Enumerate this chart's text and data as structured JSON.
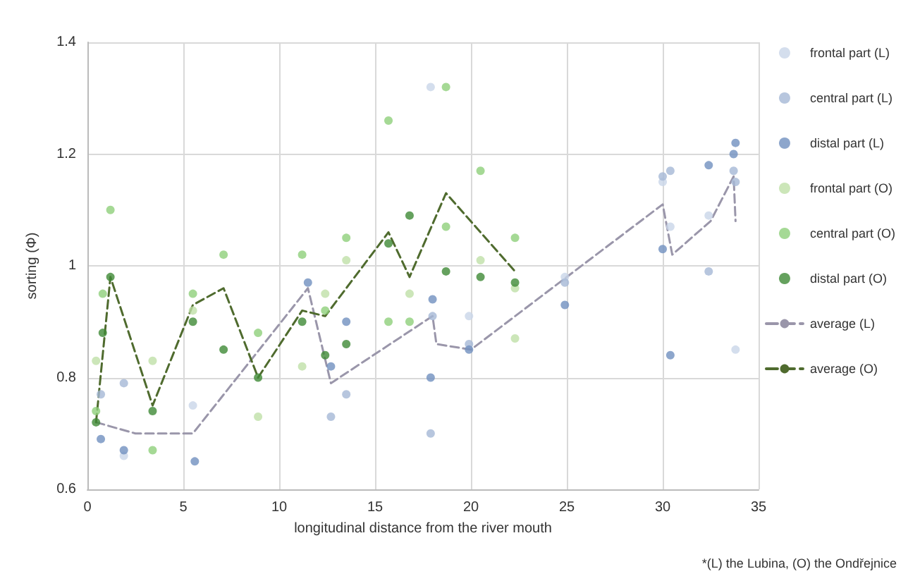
{
  "chart_data": {
    "type": "scatter",
    "xlabel": "longitudinal distance from the river mouth",
    "ylabel": "sorting (Φ)",
    "xlim": [
      0,
      35
    ],
    "xticks": [
      0,
      5,
      10,
      15,
      20,
      25,
      30,
      35
    ],
    "ylim": [
      0.6,
      1.4
    ],
    "yticks": [
      0.6,
      0.8,
      1,
      1.2,
      1.4
    ],
    "grid": true,
    "legend": "right",
    "marker": "circle",
    "annotations": [
      "*(L) the Lubina, (O) the Ondřejnice"
    ],
    "series": [
      {
        "name": "frontal part (L)",
        "color": "#c9d6e8",
        "x": [
          1.9,
          5.5,
          17.9,
          19.9,
          24.9,
          30.0,
          30.4,
          32.4,
          33.8
        ],
        "values": [
          0.66,
          0.75,
          1.32,
          0.91,
          0.98,
          1.15,
          1.07,
          1.09,
          0.85
        ]
      },
      {
        "name": "central part (L)",
        "color": "#a5b8d6",
        "x": [
          0.7,
          1.9,
          12.7,
          13.5,
          17.9,
          18.0,
          19.9,
          24.9,
          30.0,
          30.4,
          32.4,
          33.7,
          33.8
        ],
        "values": [
          0.77,
          0.79,
          0.73,
          0.77,
          0.7,
          0.91,
          0.86,
          0.97,
          1.16,
          1.17,
          0.99,
          1.17,
          1.15
        ]
      },
      {
        "name": "distal part (L)",
        "color": "#7090bf",
        "x": [
          0.7,
          1.9,
          5.6,
          11.5,
          12.7,
          13.5,
          17.9,
          18.0,
          19.9,
          24.9,
          30.0,
          30.4,
          32.4,
          33.7,
          33.8
        ],
        "values": [
          0.69,
          0.67,
          0.65,
          0.97,
          0.82,
          0.9,
          0.8,
          0.94,
          0.85,
          0.93,
          1.03,
          0.84,
          1.18,
          1.2,
          1.22
        ]
      },
      {
        "name": "frontal part (O)",
        "color": "#bfe0a8",
        "x": [
          0.45,
          3.4,
          5.5,
          8.9,
          11.2,
          12.4,
          13.5,
          16.8,
          20.5,
          22.3,
          22.3
        ],
        "values": [
          0.83,
          0.83,
          0.92,
          0.73,
          0.82,
          0.95,
          1.01,
          0.95,
          1.01,
          0.87,
          0.96
        ]
      },
      {
        "name": "central part (O)",
        "color": "#8ecf7a",
        "x": [
          0.45,
          0.8,
          1.2,
          3.4,
          5.5,
          7.1,
          8.9,
          11.2,
          12.4,
          13.5,
          15.7,
          15.7,
          16.8,
          18.7,
          18.7,
          20.5,
          22.3
        ],
        "values": [
          0.74,
          0.95,
          1.1,
          0.67,
          0.95,
          1.02,
          0.88,
          1.02,
          0.92,
          1.05,
          0.9,
          1.26,
          0.9,
          1.07,
          1.32,
          1.17,
          1.05
        ]
      },
      {
        "name": "distal part (O)",
        "color": "#3f8a36",
        "x": [
          0.45,
          0.8,
          1.2,
          3.4,
          5.5,
          7.1,
          8.9,
          11.2,
          12.4,
          13.5,
          15.7,
          16.8,
          18.7,
          20.5,
          22.3
        ],
        "values": [
          0.72,
          0.88,
          0.98,
          0.74,
          0.9,
          0.85,
          0.8,
          0.9,
          0.84,
          0.86,
          1.04,
          1.09,
          0.99,
          0.98,
          0.97
        ]
      },
      {
        "name": "average (L)",
        "type": "line",
        "marker": "none",
        "line_style": "dashed",
        "color": "#9a96aa",
        "x": [
          0.45,
          2.5,
          5.5,
          11.5,
          12.7,
          18.0,
          18.2,
          20.0,
          30.0,
          30.5,
          32.5,
          33.7,
          33.8
        ],
        "values": [
          0.72,
          0.7,
          0.7,
          0.96,
          0.79,
          0.91,
          0.86,
          0.85,
          1.11,
          1.02,
          1.08,
          1.16,
          1.08
        ]
      },
      {
        "name": "average (O)",
        "type": "line",
        "marker": "none",
        "line_style": "dashed",
        "color": "#4f6b2e",
        "x": [
          0.45,
          1.2,
          3.4,
          5.5,
          7.1,
          8.9,
          11.2,
          12.4,
          15.7,
          16.8,
          18.7,
          22.3
        ],
        "values": [
          0.72,
          0.98,
          0.75,
          0.93,
          0.96,
          0.8,
          0.92,
          0.91,
          1.06,
          0.98,
          1.13,
          0.99
        ]
      }
    ]
  }
}
